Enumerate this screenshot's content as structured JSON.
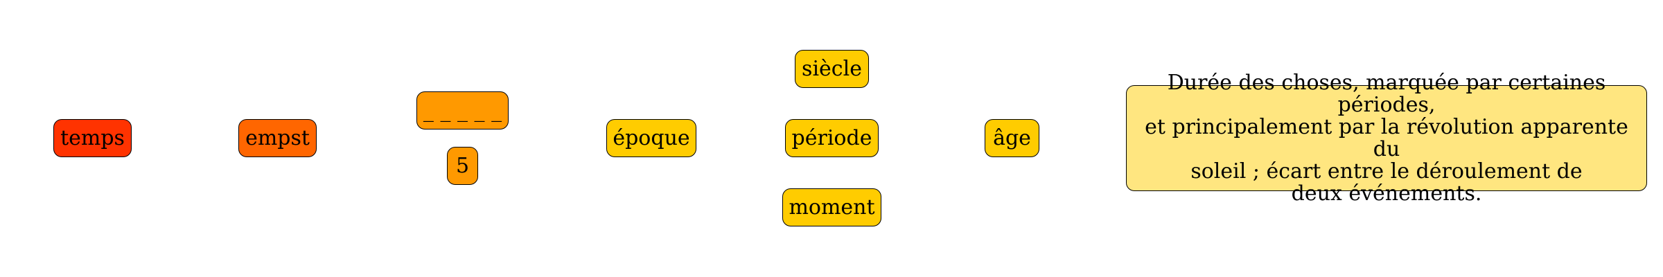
{
  "colors": {
    "red": "#ff3300",
    "dark_orange": "#ff6600",
    "orange": "#ff9900",
    "gold": "#ffcc00",
    "light_yellow": "#ffe680"
  },
  "nodes": {
    "temps": "temps",
    "empst": "empst",
    "blank": "_ _ _ _ _",
    "count": "5",
    "epoque": "époque",
    "siecle": "siècle",
    "periode": "période",
    "moment": "moment",
    "age": "âge"
  },
  "definition": {
    "lines": [
      "Durée des choses, marquée par certaines périodes,",
      "et principalement par la révolution apparente du",
      "soleil ; écart entre le déroulement de",
      "deux événements."
    ]
  }
}
